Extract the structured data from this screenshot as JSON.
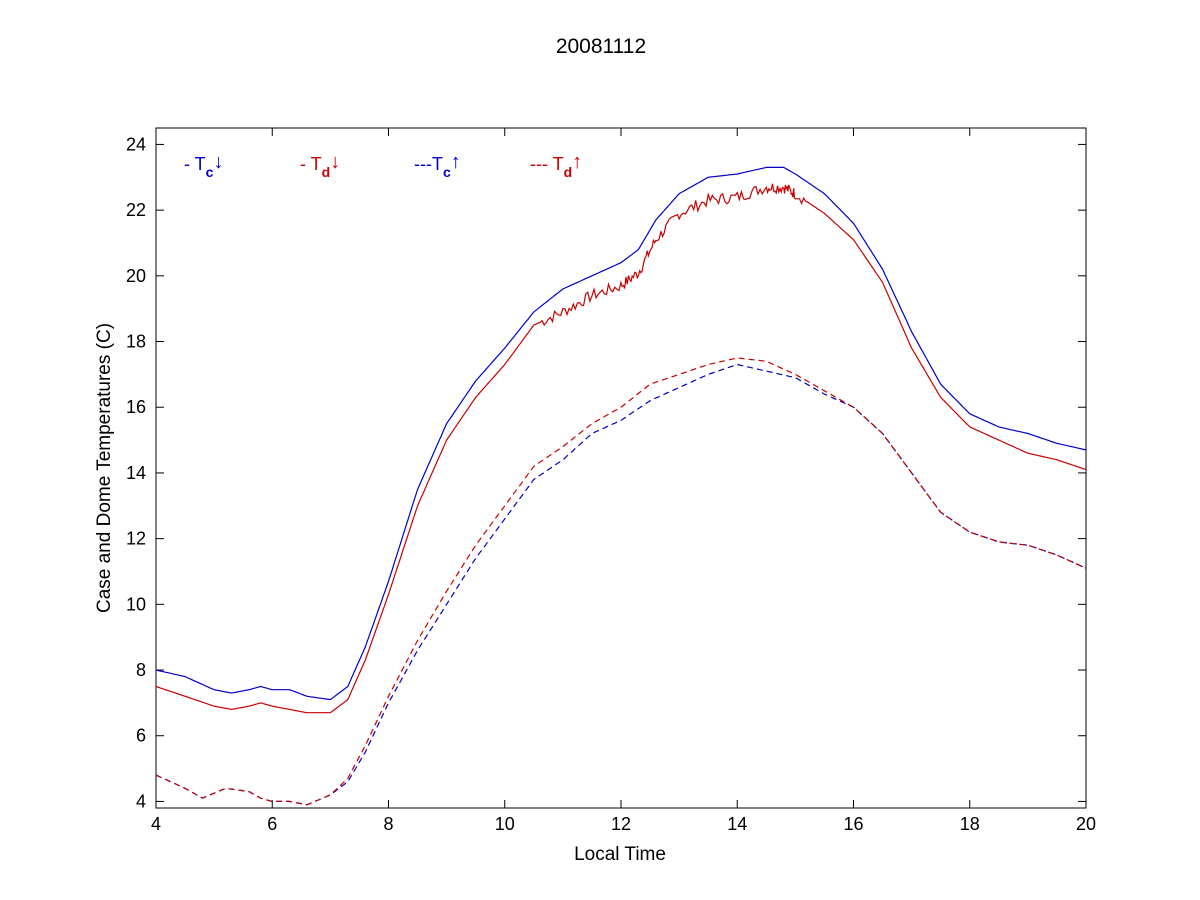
{
  "chart_data": {
    "type": "line",
    "title": "20081112",
    "xlabel": "Local Time",
    "ylabel": "Case and Dome Temperatures (C)",
    "xlim": [
      4,
      20
    ],
    "ylim": [
      3.8,
      24.5
    ],
    "xticks": [
      4,
      6,
      8,
      10,
      12,
      14,
      16,
      18,
      20
    ],
    "yticks": [
      4,
      6,
      8,
      10,
      12,
      14,
      16,
      18,
      20,
      22,
      24
    ],
    "grid": false,
    "legend_position": "top-left",
    "series": [
      {
        "name": "- Tc↓",
        "legend_prefix": "- T",
        "legend_sub": "c",
        "legend_arrow": "↓",
        "color": "#0000c8",
        "style": "solid",
        "jitter": 0,
        "x": [
          4,
          4.5,
          5,
          5.3,
          5.6,
          5.8,
          6,
          6.3,
          6.6,
          7,
          7.3,
          7.6,
          8,
          8.5,
          9,
          9.5,
          10,
          10.5,
          11,
          11.5,
          12,
          12.3,
          12.6,
          13,
          13.5,
          14,
          14.5,
          14.8,
          15,
          15.5,
          16,
          16.5,
          17,
          17.5,
          18,
          18.5,
          19,
          19.5,
          20
        ],
        "y": [
          8.0,
          7.8,
          7.4,
          7.3,
          7.4,
          7.5,
          7.4,
          7.4,
          7.2,
          7.1,
          7.5,
          8.7,
          10.7,
          13.5,
          15.5,
          16.8,
          17.8,
          18.9,
          19.6,
          20.0,
          20.4,
          20.8,
          21.7,
          22.5,
          23.0,
          23.1,
          23.3,
          23.3,
          23.1,
          22.5,
          21.6,
          20.2,
          18.3,
          16.7,
          15.8,
          15.4,
          15.2,
          14.9,
          14.7
        ]
      },
      {
        "name": "- Td↓",
        "legend_prefix": "- T",
        "legend_sub": "d",
        "legend_arrow": "↓",
        "color": "#c80000",
        "style": "solid",
        "jitter": 0.18,
        "x": [
          4,
          4.5,
          5,
          5.3,
          5.6,
          5.8,
          6,
          6.3,
          6.6,
          7,
          7.3,
          7.6,
          8,
          8.5,
          9,
          9.5,
          10,
          10.5,
          11,
          11.5,
          12,
          12.3,
          12.6,
          13,
          13.5,
          14,
          14.5,
          14.8,
          15,
          15.5,
          16,
          16.5,
          17,
          17.5,
          18,
          18.5,
          19,
          19.5,
          20
        ],
        "y": [
          7.5,
          7.2,
          6.9,
          6.8,
          6.9,
          7.0,
          6.9,
          6.8,
          6.7,
          6.7,
          7.1,
          8.3,
          10.3,
          13.0,
          15.0,
          16.3,
          17.3,
          18.5,
          18.9,
          19.4,
          19.7,
          20.1,
          21.1,
          21.9,
          22.3,
          22.4,
          22.7,
          22.7,
          22.5,
          21.9,
          21.1,
          19.8,
          17.8,
          16.3,
          15.4,
          15.0,
          14.6,
          14.4,
          14.1
        ]
      },
      {
        "name": "---Tc↑",
        "legend_prefix": "---T",
        "legend_sub": "c",
        "legend_arrow": "↑",
        "color": "#0000c8",
        "style": "dashed",
        "jitter": 0,
        "x": [
          4,
          4.5,
          4.8,
          5.2,
          5.6,
          5.8,
          6,
          6.3,
          6.6,
          7,
          7.3,
          7.6,
          8,
          8.5,
          9,
          9.5,
          10,
          10.5,
          11,
          11.5,
          12,
          12.5,
          13,
          13.5,
          14,
          14.5,
          15,
          15.5,
          16,
          16.5,
          17,
          17.5,
          18,
          18.5,
          19,
          19.5,
          20
        ],
        "y": [
          4.8,
          4.4,
          4.1,
          4.4,
          4.3,
          4.1,
          4.0,
          4.0,
          3.9,
          4.2,
          4.6,
          5.5,
          7.0,
          8.6,
          10.0,
          11.4,
          12.6,
          13.8,
          14.4,
          15.2,
          15.6,
          16.2,
          16.6,
          17.0,
          17.3,
          17.1,
          16.9,
          16.4,
          16.0,
          15.2,
          14.0,
          12.8,
          12.2,
          11.9,
          11.8,
          11.5,
          11.1
        ]
      },
      {
        "name": "--- Td↑",
        "legend_prefix": "--- T",
        "legend_sub": "d",
        "legend_arrow": "↑",
        "color": "#c80000",
        "style": "dashed",
        "jitter": 0,
        "x": [
          4,
          4.5,
          4.8,
          5.2,
          5.6,
          5.8,
          6,
          6.3,
          6.6,
          7,
          7.3,
          7.6,
          8,
          8.5,
          9,
          9.5,
          10,
          10.5,
          11,
          11.5,
          12,
          12.5,
          13,
          13.5,
          14,
          14.5,
          15,
          15.5,
          16,
          16.5,
          17,
          17.5,
          18,
          18.5,
          19,
          19.5,
          20
        ],
        "y": [
          4.8,
          4.4,
          4.1,
          4.4,
          4.3,
          4.1,
          4.0,
          4.0,
          3.9,
          4.2,
          4.7,
          5.7,
          7.2,
          8.9,
          10.4,
          11.8,
          13.0,
          14.2,
          14.8,
          15.5,
          16.0,
          16.7,
          17.0,
          17.3,
          17.5,
          17.4,
          17.0,
          16.5,
          16.0,
          15.2,
          14.0,
          12.8,
          12.2,
          11.9,
          11.8,
          11.5,
          11.1
        ]
      }
    ]
  }
}
